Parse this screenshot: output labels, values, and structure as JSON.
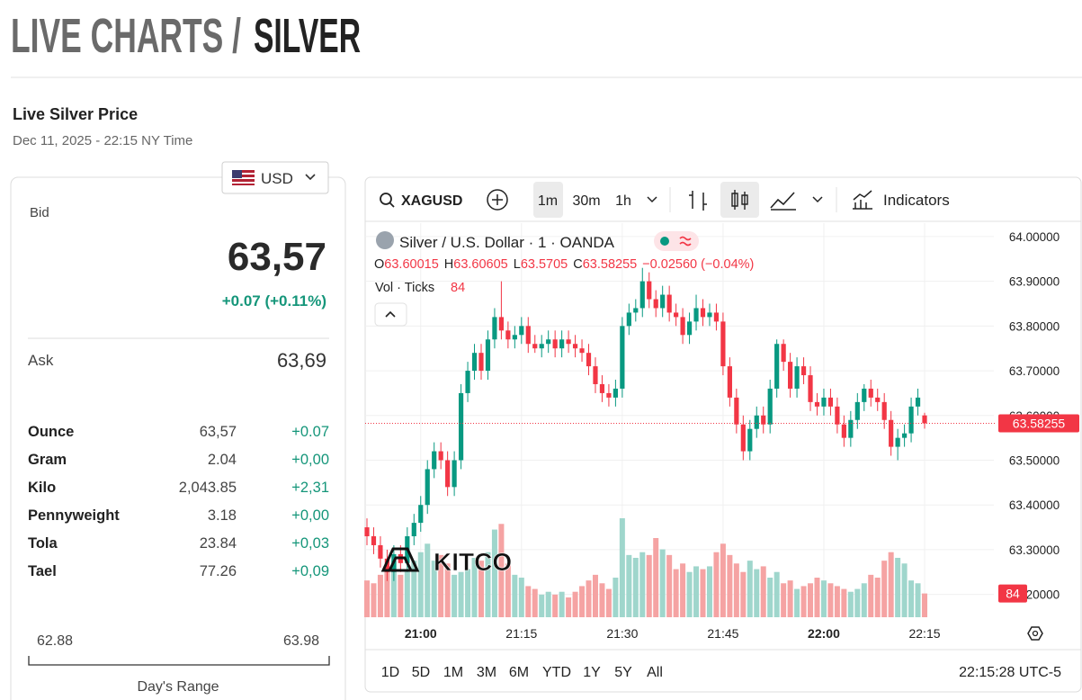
{
  "header": {
    "title_prefix": "LIVE CHARTS /",
    "title": "SILVER"
  },
  "price_panel": {
    "title": "Live Silver Price",
    "timestamp": "Dec 11, 2025 - 22:15 NY Time",
    "currency": "USD",
    "bid_label": "Bid",
    "bid": "63,57",
    "change": "+0.07 (+0.11%)",
    "ask_label": "Ask",
    "ask": "63,69",
    "rows": [
      [
        "Ounce",
        "63,57",
        "+0.07"
      ],
      [
        "Gram",
        "2.04",
        "+0,00"
      ],
      [
        "Kilo",
        "2,043.85",
        "+2,31"
      ],
      [
        "Pennyweight",
        "3.18",
        "+0,00"
      ],
      [
        "Tola",
        "23.84",
        "+0,03"
      ],
      [
        "Tael",
        "77.26",
        "+0,09"
      ]
    ],
    "range_low": "62.88",
    "range_high": "63.98",
    "range_label": "Day's Range"
  },
  "toolbar": {
    "symbol": "XAGUSD",
    "intervals": [
      "1m",
      "30m",
      "1h"
    ],
    "indicators": "Indicators"
  },
  "logo": "KITCO",
  "footer": {
    "ranges": [
      "1D",
      "5D",
      "1M",
      "3M",
      "6M",
      "YTD",
      "1Y",
      "5Y",
      "All"
    ],
    "clock": "22:15:28 UTC-5"
  },
  "chart_data": {
    "type": "candlestick",
    "title": "Silver / U.S. Dollar · 1 · OANDA",
    "legend": {
      "o": "O",
      "h": "H",
      "l": "L",
      "c": "C",
      "change": "−0.02560 (−0.04%)",
      "volume_label": "Vol · Ticks"
    },
    "up_color": "#089981",
    "down_color": "#f23645",
    "volume_up_color": "#9fd6cc",
    "volume_down_color": "#f5a3a3",
    "x": [
      "20:52",
      "20:53",
      "20:54",
      "20:55",
      "20:56",
      "20:57",
      "20:58",
      "20:59",
      "21:00",
      "21:01",
      "21:02",
      "21:03",
      "21:04",
      "21:05",
      "21:06",
      "21:07",
      "21:08",
      "21:09",
      "21:10",
      "21:11",
      "21:12",
      "21:13",
      "21:14",
      "21:15",
      "21:16",
      "21:17",
      "21:18",
      "21:19",
      "21:20",
      "21:21",
      "21:22",
      "21:23",
      "21:24",
      "21:25",
      "21:26",
      "21:27",
      "21:28",
      "21:29",
      "21:30",
      "21:31",
      "21:32",
      "21:33",
      "21:34",
      "21:35",
      "21:36",
      "21:37",
      "21:38",
      "21:39",
      "21:40",
      "21:41",
      "21:42",
      "21:43",
      "21:44",
      "21:45",
      "21:46",
      "21:47",
      "21:48",
      "21:49",
      "21:50",
      "21:51",
      "21:52",
      "21:53",
      "21:54",
      "21:55",
      "21:56",
      "21:57",
      "21:58",
      "21:59",
      "22:00",
      "22:01",
      "22:02",
      "22:03",
      "22:04",
      "22:05",
      "22:06",
      "22:07",
      "22:08",
      "22:09",
      "22:10",
      "22:11",
      "22:12",
      "22:13",
      "22:14",
      "22:15"
    ],
    "open": [
      63.35,
      63.33,
      63.31,
      63.28,
      63.25,
      63.29,
      63.27,
      63.33,
      63.36,
      63.4,
      63.48,
      63.52,
      63.5,
      63.44,
      63.5,
      63.65,
      63.7,
      63.74,
      63.7,
      63.77,
      63.82,
      63.79,
      63.77,
      63.78,
      63.8,
      63.76,
      63.75,
      63.76,
      63.77,
      63.75,
      63.77,
      63.76,
      63.75,
      63.74,
      63.71,
      63.67,
      63.65,
      63.64,
      63.66,
      63.8,
      63.83,
      63.84,
      63.9,
      63.86,
      63.84,
      63.87,
      63.83,
      63.82,
      63.78,
      63.81,
      63.84,
      63.82,
      63.83,
      63.81,
      63.71,
      63.64,
      63.58,
      63.52,
      63.57,
      63.6,
      63.58,
      63.66,
      63.76,
      63.72,
      63.66,
      63.71,
      63.69,
      63.63,
      63.62,
      63.64,
      63.62,
      63.58,
      63.55,
      63.59,
      63.63,
      63.66,
      63.64,
      63.63,
      63.59,
      63.53,
      63.55,
      63.56,
      63.62,
      63.60015
    ],
    "high": [
      63.37,
      63.35,
      63.33,
      63.3,
      63.31,
      63.31,
      63.35,
      63.38,
      63.42,
      63.5,
      63.54,
      63.54,
      63.52,
      63.52,
      63.67,
      63.72,
      63.76,
      63.76,
      63.79,
      63.84,
      63.9,
      63.81,
      63.8,
      63.82,
      63.82,
      63.78,
      63.78,
      63.79,
      63.79,
      63.79,
      63.79,
      63.78,
      63.77,
      63.76,
      63.73,
      63.69,
      63.67,
      63.68,
      63.82,
      63.85,
      63.86,
      63.93,
      63.92,
      63.88,
      63.89,
      63.89,
      63.85,
      63.84,
      63.83,
      63.87,
      63.86,
      63.85,
      63.85,
      63.83,
      63.73,
      63.66,
      63.6,
      63.59,
      63.62,
      63.62,
      63.68,
      63.77,
      63.77,
      63.74,
      63.73,
      63.73,
      63.71,
      63.65,
      63.66,
      63.66,
      63.64,
      63.6,
      63.61,
      63.65,
      63.67,
      63.68,
      63.66,
      63.65,
      63.61,
      63.57,
      63.58,
      63.64,
      63.66,
      63.60605
    ],
    "low": [
      63.31,
      63.29,
      63.26,
      63.23,
      63.23,
      63.25,
      63.25,
      63.31,
      63.34,
      63.38,
      63.46,
      63.48,
      63.42,
      63.42,
      63.48,
      63.63,
      63.68,
      63.68,
      63.68,
      63.75,
      63.77,
      63.75,
      63.75,
      63.76,
      63.74,
      63.74,
      63.73,
      63.74,
      63.73,
      63.73,
      63.74,
      63.73,
      63.72,
      63.69,
      63.65,
      63.63,
      63.62,
      63.62,
      63.64,
      63.78,
      63.81,
      63.82,
      63.84,
      63.82,
      63.82,
      63.81,
      63.8,
      63.76,
      63.76,
      63.79,
      63.8,
      63.8,
      63.79,
      63.69,
      63.62,
      63.56,
      63.5,
      63.5,
      63.55,
      63.56,
      63.56,
      63.64,
      63.7,
      63.64,
      63.64,
      63.67,
      63.61,
      63.6,
      63.6,
      63.6,
      63.56,
      63.53,
      63.53,
      63.57,
      63.61,
      63.62,
      63.61,
      63.57,
      63.51,
      63.5,
      63.53,
      63.54,
      63.6,
      63.5705
    ],
    "close": [
      63.33,
      63.31,
      63.28,
      63.25,
      63.29,
      63.27,
      63.33,
      63.36,
      63.4,
      63.48,
      63.52,
      63.5,
      63.44,
      63.5,
      63.65,
      63.7,
      63.74,
      63.7,
      63.77,
      63.82,
      63.79,
      63.77,
      63.78,
      63.8,
      63.76,
      63.75,
      63.76,
      63.77,
      63.75,
      63.77,
      63.76,
      63.75,
      63.74,
      63.71,
      63.67,
      63.65,
      63.64,
      63.66,
      63.8,
      63.83,
      63.84,
      63.9,
      63.86,
      63.84,
      63.87,
      63.83,
      63.82,
      63.78,
      63.81,
      63.84,
      63.82,
      63.83,
      63.81,
      63.71,
      63.64,
      63.58,
      63.52,
      63.57,
      63.6,
      63.58,
      63.66,
      63.76,
      63.72,
      63.66,
      63.71,
      63.69,
      63.63,
      63.62,
      63.64,
      63.62,
      63.58,
      63.55,
      63.59,
      63.63,
      63.66,
      63.64,
      63.63,
      63.59,
      63.53,
      63.55,
      63.56,
      63.62,
      63.64,
      63.58255
    ],
    "volume": [
      130,
      120,
      150,
      180,
      200,
      150,
      170,
      200,
      230,
      260,
      200,
      220,
      190,
      150,
      160,
      170,
      210,
      200,
      230,
      310,
      330,
      190,
      150,
      140,
      110,
      100,
      80,
      90,
      80,
      90,
      70,
      90,
      110,
      130,
      150,
      120,
      100,
      140,
      350,
      220,
      210,
      230,
      220,
      280,
      240,
      220,
      170,
      190,
      160,
      180,
      170,
      180,
      230,
      260,
      220,
      190,
      160,
      200,
      170,
      180,
      140,
      160,
      120,
      130,
      100,
      110,
      120,
      140,
      130,
      120,
      110,
      100,
      90,
      100,
      120,
      150,
      140,
      200,
      230,
      210,
      190,
      130,
      120,
      84
    ],
    "ylim": [
      63.149,
      64.03
    ],
    "yticks": [
      {
        "value": 64.0,
        "label": "64.00000"
      },
      {
        "value": 63.9,
        "label": "63.90000"
      },
      {
        "value": 63.8,
        "label": "63.80000"
      },
      {
        "value": 63.7,
        "label": "63.70000"
      },
      {
        "value": 63.6,
        "label": "63.60000"
      },
      {
        "value": 63.5,
        "label": "63.50000"
      },
      {
        "value": 63.4,
        "label": "63.40000"
      },
      {
        "value": 63.3,
        "label": "63.30000"
      },
      {
        "value": 63.2,
        "label": "63.20000"
      }
    ],
    "xticks": [
      "21:00",
      "21:15",
      "21:30",
      "21:45",
      "22:00",
      "22:15"
    ],
    "bold_xticks": [
      "21:00",
      "22:00"
    ],
    "grid": true
  }
}
